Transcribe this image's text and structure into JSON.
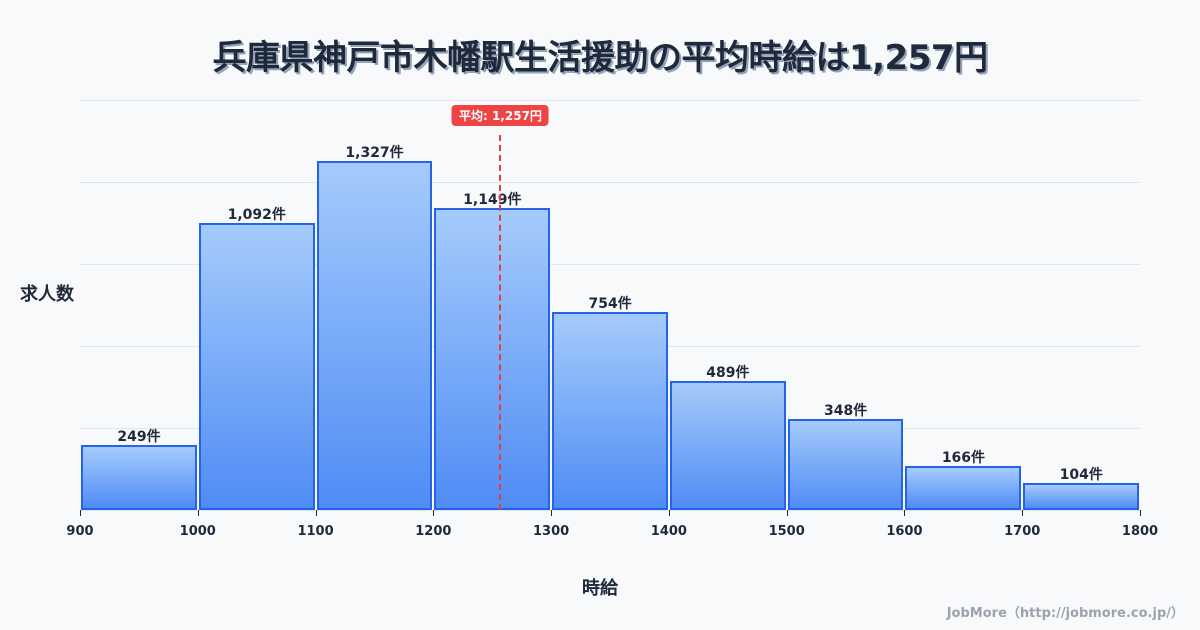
{
  "title": "兵庫県神戸市木幡駅生活援助の平均時給は1,257円",
  "ylabel": "求人数",
  "xlabel": "時給",
  "credit": "JobMore（http://jobmore.co.jp/）",
  "mean_label": "平均: 1,257円",
  "colors": {
    "bar_border": "#2563eb",
    "bar_top": "#a5cbfb",
    "bar_bottom": "#4f8cf5",
    "mean": "#ef4444"
  },
  "chart_data": {
    "type": "bar",
    "title": "兵庫県神戸市木幡駅生活援助の平均時給は1,257円",
    "xlabel": "時給",
    "ylabel": "求人数",
    "categories": [
      "900-1000",
      "1000-1100",
      "1100-1200",
      "1200-1300",
      "1300-1400",
      "1400-1500",
      "1500-1600",
      "1600-1700",
      "1700-1800"
    ],
    "values": [
      249,
      1092,
      1327,
      1149,
      754,
      489,
      348,
      166,
      104
    ],
    "value_labels": [
      "249件",
      "1,092件",
      "1,327件",
      "1,149件",
      "754件",
      "489件",
      "348件",
      "166件",
      "104件"
    ],
    "x_ticks": [
      "900",
      "1000",
      "1100",
      "1200",
      "1300",
      "1400",
      "1500",
      "1600",
      "1700",
      "1800"
    ],
    "xlim": [
      900,
      1800
    ],
    "ylim": [
      0,
      1560
    ],
    "grid": true,
    "mean": 1257,
    "annotations": [
      "平均: 1,257円"
    ]
  }
}
